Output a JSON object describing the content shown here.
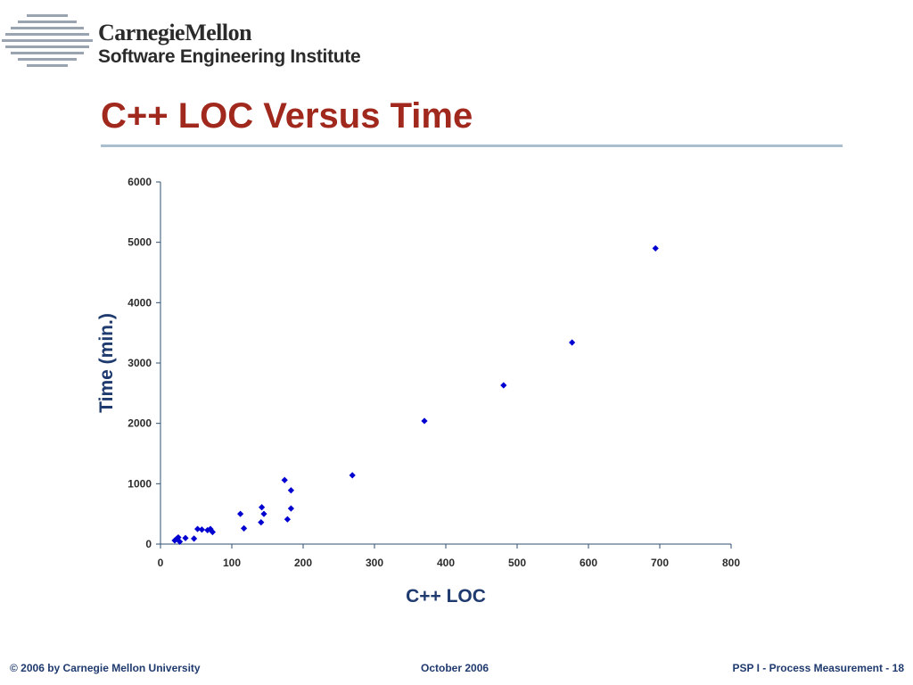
{
  "header": {
    "org_line1": "CarnegieMellon",
    "org_line2": "Software Engineering Institute"
  },
  "title": "C++ LOC Versus Time",
  "colors": {
    "title": "#a0281c",
    "rule": "#a9bfcf",
    "footer": "#1f3a6e",
    "marker": "#0000d0",
    "axis": "#2f4f6f"
  },
  "chart_data": {
    "type": "scatter",
    "xlabel": "C++  LOC",
    "ylabel": "Time (min.)",
    "xlim": [
      0,
      800
    ],
    "ylim": [
      0,
      6000
    ],
    "xticks": [
      0,
      100,
      200,
      300,
      400,
      500,
      600,
      700,
      800
    ],
    "yticks": [
      0,
      1000,
      2000,
      3000,
      4000,
      5000,
      6000
    ],
    "grid": false,
    "marker": "diamond",
    "points": [
      [
        20,
        60
      ],
      [
        23,
        90
      ],
      [
        25,
        110
      ],
      [
        27,
        40
      ],
      [
        35,
        100
      ],
      [
        47,
        90
      ],
      [
        52,
        250
      ],
      [
        58,
        240
      ],
      [
        66,
        230
      ],
      [
        70,
        250
      ],
      [
        73,
        200
      ],
      [
        112,
        500
      ],
      [
        117,
        260
      ],
      [
        141,
        360
      ],
      [
        142,
        610
      ],
      [
        145,
        500
      ],
      [
        174,
        1060
      ],
      [
        178,
        410
      ],
      [
        183,
        890
      ],
      [
        183,
        590
      ],
      [
        269,
        1140
      ],
      [
        370,
        2040
      ],
      [
        481,
        2630
      ],
      [
        577,
        3340
      ],
      [
        694,
        4900
      ]
    ]
  },
  "footer": {
    "left": "© 2006 by Carnegie Mellon University",
    "center": "October 2006",
    "right": "PSP I - Process Measurement - 18"
  }
}
